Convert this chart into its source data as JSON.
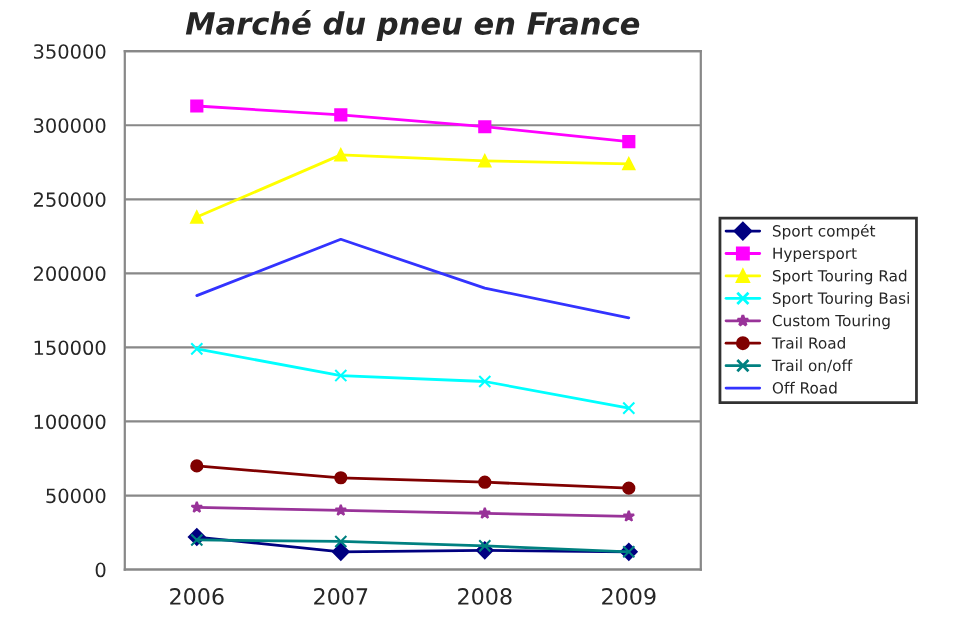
{
  "chart_data": {
    "type": "line",
    "title": "Marché du pneu en France",
    "categories": [
      "2006",
      "2007",
      "2008",
      "2009"
    ],
    "series": [
      {
        "name": "Sport compét",
        "color": "#000080",
        "marker": "diamond",
        "values": [
          22000,
          12000,
          13000,
          12000
        ]
      },
      {
        "name": "Hypersport",
        "color": "#ff00ff",
        "marker": "square",
        "values": [
          313000,
          307000,
          299000,
          289000
        ]
      },
      {
        "name": "Sport Touring Rad",
        "color": "#ffff00",
        "marker": "triangle",
        "values": [
          238000,
          280000,
          276000,
          274000
        ]
      },
      {
        "name": "Sport Touring Basi",
        "color": "#00ffff",
        "marker": "cross",
        "values": [
          149000,
          131000,
          127000,
          109000
        ]
      },
      {
        "name": "Custom Touring",
        "color": "#993399",
        "marker": "star",
        "values": [
          42000,
          40000,
          38000,
          36000
        ]
      },
      {
        "name": "Trail Road",
        "color": "#800000",
        "marker": "circle",
        "values": [
          70000,
          62000,
          59000,
          55000
        ]
      },
      {
        "name": "Trail on/off",
        "color": "#008080",
        "marker": "cross",
        "values": [
          20000,
          19000,
          16000,
          12000
        ]
      },
      {
        "name": "Off Road",
        "color": "#3333ff",
        "marker": "none",
        "values": [
          185000,
          223000,
          190000,
          170000
        ]
      }
    ],
    "ylim": [
      0,
      350000
    ],
    "yticks": [
      0,
      50000,
      100000,
      150000,
      200000,
      250000,
      300000,
      350000
    ],
    "grid": "y",
    "legend": "right"
  }
}
